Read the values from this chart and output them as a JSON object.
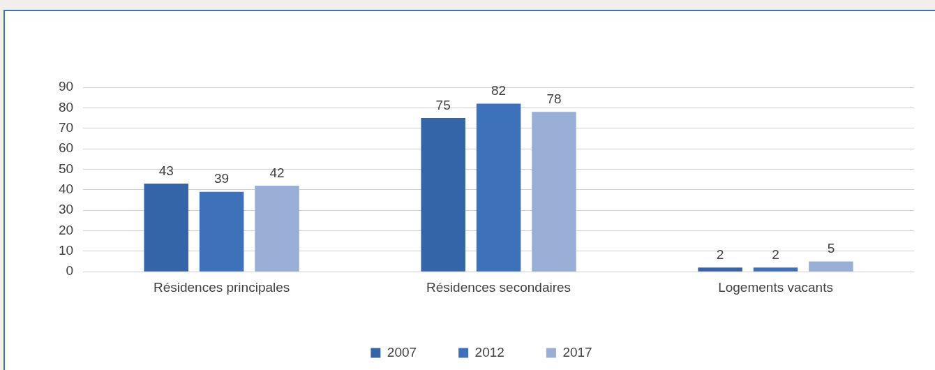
{
  "chart_data": {
    "type": "bar",
    "categories": [
      "Résidences principales",
      "Résidences secondaires",
      "Logements vacants"
    ],
    "series": [
      {
        "name": "2007",
        "color": "#3465a8",
        "values": [
          43,
          75,
          2
        ]
      },
      {
        "name": "2012",
        "color": "#3d72ba",
        "values": [
          39,
          82,
          2
        ]
      },
      {
        "name": "2017",
        "color": "#9aafd6",
        "values": [
          42,
          78,
          5
        ]
      }
    ],
    "ylim": [
      0,
      90
    ],
    "yticks": [
      0,
      10,
      20,
      30,
      40,
      50,
      60,
      70,
      80,
      90
    ],
    "grid": "y",
    "legend": "bottom",
    "data_labels": true
  }
}
